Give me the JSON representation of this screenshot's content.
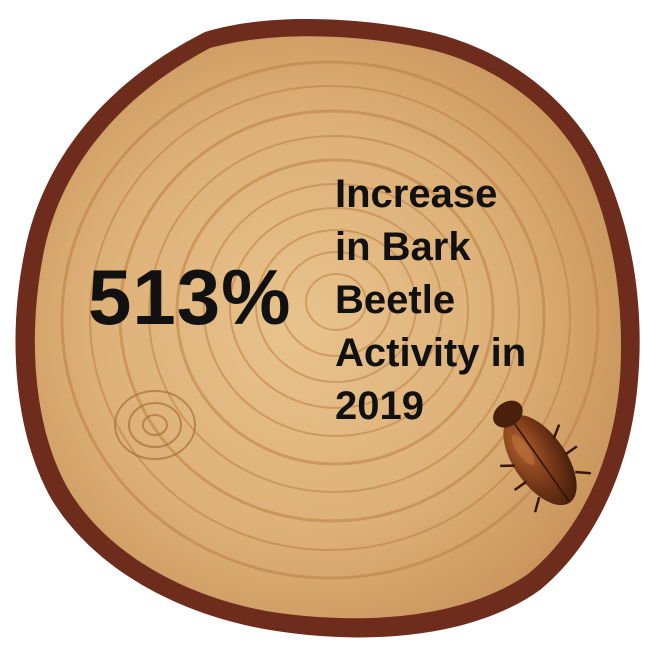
{
  "stat": {
    "value": "513%",
    "description_lines": [
      "Increase",
      "in Bark",
      "Beetle",
      "Activity in",
      "2019"
    ]
  },
  "colors": {
    "bark": "#6e2c1c",
    "wood_light": "#e7c089",
    "wood_mid": "#d8a96b",
    "ring": "#b97f45",
    "text": "#111111",
    "beetle": "#6a3416"
  },
  "decor": {
    "background_icon": "tree-stump-cross-section-icon",
    "beetle_icon": "bark-beetle-icon"
  }
}
